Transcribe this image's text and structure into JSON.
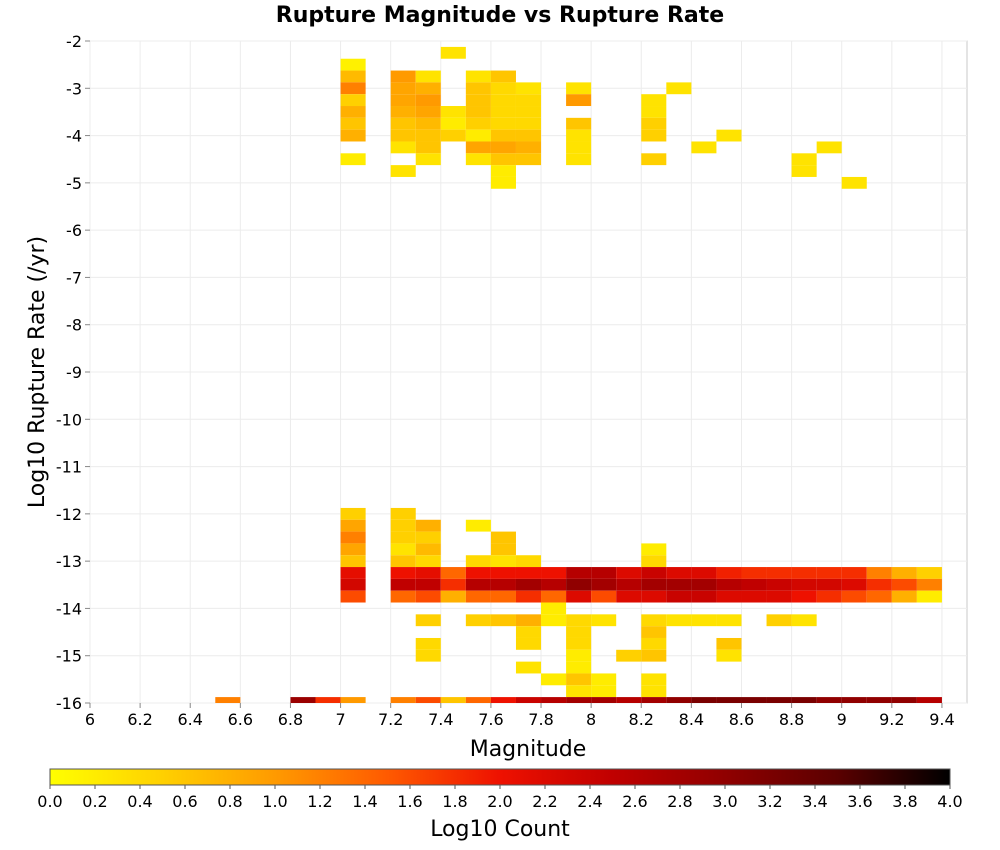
{
  "chart_data": {
    "type": "heatmap",
    "title": "Rupture Magnitude vs Rupture Rate",
    "xlabel": "Magnitude",
    "ylabel": "Log10 Rupture Rate (/yr)",
    "xlim": [
      6.0,
      9.5
    ],
    "ylim": [
      -16,
      -2
    ],
    "x_ticks": [
      "6",
      "6.2",
      "6.4",
      "6.6",
      "6.8",
      "7",
      "7.2",
      "7.4",
      "7.6",
      "7.8",
      "8",
      "8.2",
      "8.4",
      "8.6",
      "8.8",
      "9",
      "9.2",
      "9.4"
    ],
    "y_ticks": [
      "-2",
      "-3",
      "-4",
      "-5",
      "-6",
      "-7",
      "-8",
      "-9",
      "-10",
      "-11",
      "-12",
      "-13",
      "-14",
      "-15",
      "-16"
    ],
    "bin_width_x": 0.1,
    "bin_height_y": 0.25,
    "grid": true,
    "colorbar": {
      "label": "Log10 Count",
      "range": [
        0.0,
        4.0
      ],
      "ticks": [
        "0.0",
        "0.2",
        "0.4",
        "0.6",
        "0.8",
        "1.0",
        "1.2",
        "1.4",
        "1.6",
        "1.8",
        "2.0",
        "2.2",
        "2.4",
        "2.6",
        "2.8",
        "3.0",
        "3.2",
        "3.4",
        "3.6",
        "3.8",
        "4.0"
      ],
      "colors": [
        "#ffff00",
        "#ffd000",
        "#ff9a00",
        "#ff5a00",
        "#ee1100",
        "#c00000",
        "#900000",
        "#5a0000",
        "#000000"
      ],
      "placement": "bottom"
    },
    "cells": [
      [
        7.05,
        -2.5,
        0.15
      ],
      [
        7.05,
        -2.75,
        0.7
      ],
      [
        7.05,
        -3.0,
        1.2
      ],
      [
        7.05,
        -3.25,
        0.5
      ],
      [
        7.05,
        -3.5,
        0.8
      ],
      [
        7.05,
        -3.75,
        0.6
      ],
      [
        7.05,
        -4.0,
        0.8
      ],
      [
        7.05,
        -4.5,
        0.2
      ],
      [
        7.25,
        -2.75,
        1.0
      ],
      [
        7.25,
        -3.0,
        0.9
      ],
      [
        7.25,
        -3.25,
        0.9
      ],
      [
        7.25,
        -3.5,
        0.8
      ],
      [
        7.25,
        -3.75,
        0.6
      ],
      [
        7.25,
        -4.0,
        0.6
      ],
      [
        7.25,
        -4.25,
        0.3
      ],
      [
        7.25,
        -4.75,
        0.3
      ],
      [
        7.35,
        -2.75,
        0.3
      ],
      [
        7.35,
        -3.0,
        0.8
      ],
      [
        7.35,
        -3.25,
        1.0
      ],
      [
        7.35,
        -3.5,
        0.9
      ],
      [
        7.35,
        -3.75,
        0.7
      ],
      [
        7.35,
        -4.0,
        0.6
      ],
      [
        7.35,
        -4.25,
        0.6
      ],
      [
        7.35,
        -4.5,
        0.3
      ],
      [
        7.45,
        -2.25,
        0.3
      ],
      [
        7.45,
        -3.5,
        0.3
      ],
      [
        7.45,
        -3.75,
        0.2
      ],
      [
        7.45,
        -4.0,
        0.5
      ],
      [
        7.55,
        -2.75,
        0.3
      ],
      [
        7.55,
        -3.0,
        0.6
      ],
      [
        7.55,
        -3.25,
        0.6
      ],
      [
        7.55,
        -3.5,
        0.6
      ],
      [
        7.55,
        -3.75,
        0.5
      ],
      [
        7.55,
        -4.0,
        0.2
      ],
      [
        7.55,
        -4.25,
        0.9
      ],
      [
        7.55,
        -4.5,
        0.3
      ],
      [
        7.65,
        -2.75,
        0.6
      ],
      [
        7.65,
        -3.0,
        0.4
      ],
      [
        7.65,
        -3.25,
        0.4
      ],
      [
        7.65,
        -3.5,
        0.4
      ],
      [
        7.65,
        -3.75,
        0.4
      ],
      [
        7.65,
        -4.0,
        0.6
      ],
      [
        7.65,
        -4.25,
        0.9
      ],
      [
        7.65,
        -4.5,
        0.6
      ],
      [
        7.65,
        -4.75,
        0.2
      ],
      [
        7.65,
        -5.0,
        0.2
      ],
      [
        7.75,
        -3.0,
        0.3
      ],
      [
        7.75,
        -3.25,
        0.4
      ],
      [
        7.75,
        -3.5,
        0.4
      ],
      [
        7.75,
        -3.75,
        0.4
      ],
      [
        7.75,
        -4.0,
        0.6
      ],
      [
        7.75,
        -4.25,
        0.8
      ],
      [
        7.75,
        -4.5,
        0.6
      ],
      [
        7.95,
        -3.0,
        0.3
      ],
      [
        7.95,
        -3.25,
        1.0
      ],
      [
        7.95,
        -3.75,
        0.6
      ],
      [
        7.95,
        -4.0,
        0.3
      ],
      [
        7.95,
        -4.25,
        0.3
      ],
      [
        7.95,
        -4.5,
        0.3
      ],
      [
        8.25,
        -3.25,
        0.3
      ],
      [
        8.25,
        -3.5,
        0.3
      ],
      [
        8.25,
        -3.75,
        0.5
      ],
      [
        8.25,
        -4.0,
        0.5
      ],
      [
        8.25,
        -4.5,
        0.5
      ],
      [
        8.35,
        -3.0,
        0.3
      ],
      [
        8.45,
        -4.25,
        0.3
      ],
      [
        8.55,
        -4.0,
        0.3
      ],
      [
        8.85,
        -4.5,
        0.3
      ],
      [
        8.85,
        -4.75,
        0.3
      ],
      [
        8.95,
        -4.25,
        0.3
      ],
      [
        9.05,
        -5.0,
        0.3
      ],
      [
        7.05,
        -12.0,
        0.5
      ],
      [
        7.05,
        -12.25,
        0.9
      ],
      [
        7.05,
        -12.5,
        1.2
      ],
      [
        7.05,
        -12.75,
        0.9
      ],
      [
        7.05,
        -13.0,
        0.6
      ],
      [
        7.05,
        -13.25,
        2.1
      ],
      [
        7.05,
        -13.5,
        2.3
      ],
      [
        7.05,
        -13.75,
        1.6
      ],
      [
        7.25,
        -12.0,
        0.5
      ],
      [
        7.25,
        -12.25,
        0.5
      ],
      [
        7.25,
        -12.5,
        0.5
      ],
      [
        7.25,
        -12.75,
        0.3
      ],
      [
        7.25,
        -13.0,
        0.6
      ],
      [
        7.25,
        -13.25,
        2.0
      ],
      [
        7.25,
        -13.5,
        2.5
      ],
      [
        7.25,
        -13.75,
        1.4
      ],
      [
        7.35,
        -12.25,
        0.8
      ],
      [
        7.35,
        -12.5,
        0.5
      ],
      [
        7.35,
        -12.75,
        0.7
      ],
      [
        7.35,
        -13.0,
        0.4
      ],
      [
        7.35,
        -13.25,
        2.1
      ],
      [
        7.35,
        -13.5,
        2.5
      ],
      [
        7.35,
        -13.75,
        1.6
      ],
      [
        7.35,
        -14.25,
        0.5
      ],
      [
        7.35,
        -14.75,
        0.4
      ],
      [
        7.35,
        -15.0,
        0.4
      ],
      [
        7.45,
        -13.25,
        1.4
      ],
      [
        7.45,
        -13.5,
        1.8
      ],
      [
        7.45,
        -13.75,
        0.8
      ],
      [
        7.55,
        -12.25,
        0.2
      ],
      [
        7.55,
        -13.0,
        0.4
      ],
      [
        7.55,
        -13.25,
        2.0
      ],
      [
        7.55,
        -13.5,
        2.6
      ],
      [
        7.55,
        -13.75,
        1.4
      ],
      [
        7.55,
        -14.25,
        0.5
      ],
      [
        7.65,
        -12.5,
        0.6
      ],
      [
        7.65,
        -12.75,
        0.6
      ],
      [
        7.65,
        -13.0,
        0.3
      ],
      [
        7.65,
        -13.25,
        2.0
      ],
      [
        7.65,
        -13.5,
        2.6
      ],
      [
        7.65,
        -13.75,
        1.4
      ],
      [
        7.65,
        -14.25,
        0.6
      ],
      [
        7.75,
        -13.0,
        0.4
      ],
      [
        7.75,
        -13.25,
        2.0
      ],
      [
        7.75,
        -13.5,
        2.8
      ],
      [
        7.75,
        -13.75,
        1.8
      ],
      [
        7.75,
        -14.25,
        0.8
      ],
      [
        7.75,
        -14.5,
        0.4
      ],
      [
        7.75,
        -14.75,
        0.4
      ],
      [
        7.75,
        -15.25,
        0.3
      ],
      [
        7.85,
        -13.25,
        2.0
      ],
      [
        7.85,
        -13.5,
        2.6
      ],
      [
        7.85,
        -13.75,
        1.4
      ],
      [
        7.85,
        -14.0,
        0.2
      ],
      [
        7.85,
        -14.25,
        0.2
      ],
      [
        7.85,
        -15.5,
        0.2
      ],
      [
        7.95,
        -13.25,
        2.6
      ],
      [
        7.95,
        -13.5,
        3.0
      ],
      [
        7.95,
        -13.75,
        2.2
      ],
      [
        7.95,
        -14.25,
        0.4
      ],
      [
        7.95,
        -14.5,
        0.4
      ],
      [
        7.95,
        -14.75,
        0.4
      ],
      [
        7.95,
        -15.0,
        0.2
      ],
      [
        7.95,
        -15.25,
        0.2
      ],
      [
        7.95,
        -15.5,
        0.6
      ],
      [
        7.95,
        -15.75,
        0.3
      ],
      [
        8.05,
        -13.25,
        2.6
      ],
      [
        8.05,
        -13.5,
        2.8
      ],
      [
        8.05,
        -13.75,
        1.6
      ],
      [
        8.05,
        -14.25,
        0.3
      ],
      [
        8.05,
        -15.5,
        0.2
      ],
      [
        8.05,
        -15.75,
        0.2
      ],
      [
        8.15,
        -13.25,
        2.2
      ],
      [
        8.15,
        -13.5,
        2.6
      ],
      [
        8.15,
        -13.75,
        2.2
      ],
      [
        8.15,
        -15.0,
        0.5
      ],
      [
        8.25,
        -12.75,
        0.2
      ],
      [
        8.25,
        -13.0,
        0.4
      ],
      [
        8.25,
        -13.25,
        2.4
      ],
      [
        8.25,
        -13.5,
        2.8
      ],
      [
        8.25,
        -13.75,
        2.2
      ],
      [
        8.25,
        -14.25,
        0.4
      ],
      [
        8.25,
        -14.5,
        0.6
      ],
      [
        8.25,
        -14.75,
        0.4
      ],
      [
        8.25,
        -15.0,
        0.6
      ],
      [
        8.25,
        -15.5,
        0.3
      ],
      [
        8.25,
        -15.75,
        0.3
      ],
      [
        8.35,
        -13.25,
        2.2
      ],
      [
        8.35,
        -13.5,
        2.8
      ],
      [
        8.35,
        -13.75,
        2.4
      ],
      [
        8.35,
        -14.25,
        0.3
      ],
      [
        8.45,
        -13.25,
        2.2
      ],
      [
        8.45,
        -13.5,
        2.8
      ],
      [
        8.45,
        -13.75,
        2.4
      ],
      [
        8.45,
        -14.25,
        0.3
      ],
      [
        8.55,
        -13.25,
        1.9
      ],
      [
        8.55,
        -13.5,
        2.6
      ],
      [
        8.55,
        -13.75,
        2.2
      ],
      [
        8.55,
        -14.25,
        0.3
      ],
      [
        8.55,
        -14.75,
        0.6
      ],
      [
        8.55,
        -15.0,
        0.3
      ],
      [
        8.65,
        -13.25,
        1.8
      ],
      [
        8.65,
        -13.5,
        2.5
      ],
      [
        8.65,
        -13.75,
        2.2
      ],
      [
        8.75,
        -13.25,
        1.8
      ],
      [
        8.75,
        -13.5,
        2.4
      ],
      [
        8.75,
        -13.75,
        2.2
      ],
      [
        8.75,
        -14.25,
        0.5
      ],
      [
        8.85,
        -13.25,
        1.8
      ],
      [
        8.85,
        -13.5,
        2.3
      ],
      [
        8.85,
        -13.75,
        2.0
      ],
      [
        8.85,
        -14.25,
        0.3
      ],
      [
        8.95,
        -13.25,
        1.8
      ],
      [
        8.95,
        -13.5,
        2.3
      ],
      [
        8.95,
        -13.75,
        1.8
      ],
      [
        9.05,
        -13.25,
        1.8
      ],
      [
        9.05,
        -13.5,
        2.2
      ],
      [
        9.05,
        -13.75,
        1.6
      ],
      [
        9.15,
        -13.25,
        1.2
      ],
      [
        9.15,
        -13.5,
        1.8
      ],
      [
        9.15,
        -13.75,
        1.4
      ],
      [
        9.25,
        -13.25,
        0.8
      ],
      [
        9.25,
        -13.5,
        1.6
      ],
      [
        9.25,
        -13.75,
        0.8
      ],
      [
        9.35,
        -13.25,
        0.5
      ],
      [
        9.35,
        -13.5,
        1.2
      ],
      [
        9.35,
        -13.75,
        0.2
      ],
      [
        6.55,
        -16.0,
        1.2
      ],
      [
        6.85,
        -16.0,
        2.9
      ],
      [
        6.95,
        -16.0,
        1.8
      ],
      [
        7.05,
        -16.0,
        1.0
      ],
      [
        7.25,
        -16.0,
        1.2
      ],
      [
        7.35,
        -16.0,
        1.6
      ],
      [
        7.45,
        -16.0,
        0.6
      ],
      [
        7.55,
        -16.0,
        1.4
      ],
      [
        7.65,
        -16.0,
        2.0
      ],
      [
        7.75,
        -16.0,
        2.4
      ],
      [
        7.85,
        -16.0,
        2.6
      ],
      [
        7.95,
        -16.0,
        2.8
      ],
      [
        8.05,
        -16.0,
        2.8
      ],
      [
        8.15,
        -16.0,
        2.6
      ],
      [
        8.25,
        -16.0,
        2.8
      ],
      [
        8.35,
        -16.0,
        3.0
      ],
      [
        8.45,
        -16.0,
        3.2
      ],
      [
        8.55,
        -16.0,
        3.2
      ],
      [
        8.65,
        -16.0,
        3.2
      ],
      [
        8.75,
        -16.0,
        3.2
      ],
      [
        8.85,
        -16.0,
        3.2
      ],
      [
        8.95,
        -16.0,
        3.0
      ],
      [
        9.05,
        -16.0,
        3.0
      ],
      [
        9.15,
        -16.0,
        3.0
      ],
      [
        9.25,
        -16.0,
        3.0
      ],
      [
        9.35,
        -16.0,
        2.6
      ]
    ]
  }
}
